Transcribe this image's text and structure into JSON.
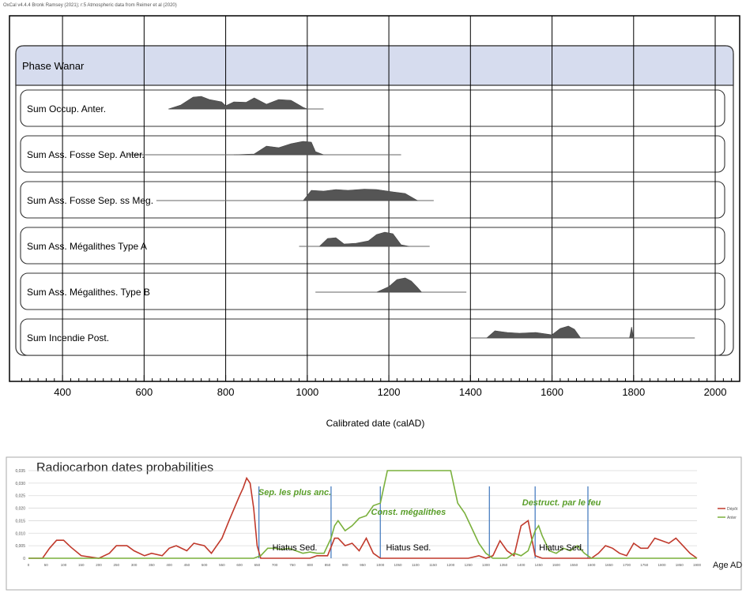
{
  "credit": "OxCal v4.4.4 Bronk Ramsey (2021); r:5 Atmospheric data from Reimer et al (2020)",
  "chart_data": [
    {
      "type": "area",
      "xlabel": "Calibrated date (calAD)",
      "xlim": [
        270,
        2060
      ],
      "xticks": [
        400,
        600,
        800,
        1000,
        1200,
        1400,
        1600,
        1800,
        2000
      ],
      "grid": true,
      "phase": "Phase Wanar",
      "series": [
        {
          "name": "Sum Occup. Anter.",
          "range": [
            660,
            1040
          ],
          "x": [
            660,
            690,
            720,
            740,
            760,
            790,
            800,
            820,
            850,
            870,
            900,
            930,
            960,
            990,
            1000
          ],
          "y": [
            0,
            0.25,
            0.75,
            0.8,
            0.6,
            0.45,
            0.2,
            0.45,
            0.42,
            0.7,
            0.3,
            0.6,
            0.55,
            0.1,
            0
          ]
        },
        {
          "name": "Sum Ass. Fosse Sep. Anter.",
          "range": [
            560,
            1230
          ],
          "x": [
            820,
            870,
            900,
            930,
            960,
            990,
            1010,
            1020,
            1040
          ],
          "y": [
            0,
            0.05,
            0.55,
            0.45,
            0.7,
            0.85,
            0.8,
            0.2,
            0
          ]
        },
        {
          "name": "Sum Ass. Fosse Sep. ss Meg.",
          "range": [
            630,
            1310
          ],
          "x": [
            990,
            1010,
            1040,
            1070,
            1100,
            1140,
            1170,
            1210,
            1240,
            1270
          ],
          "y": [
            0,
            0.65,
            0.6,
            0.7,
            0.65,
            0.72,
            0.7,
            0.55,
            0.45,
            0
          ]
        },
        {
          "name": "Sum Ass. Mégalithes Type A",
          "range": [
            980,
            1300
          ],
          "x": [
            1030,
            1050,
            1070,
            1090,
            1120,
            1150,
            1170,
            1190,
            1210,
            1230,
            1250
          ],
          "y": [
            0,
            0.5,
            0.55,
            0.15,
            0.2,
            0.35,
            0.75,
            0.9,
            0.8,
            0.1,
            0
          ]
        },
        {
          "name": "Sum Ass. Mégalithes. Type B",
          "range": [
            1020,
            1390
          ],
          "x": [
            1170,
            1200,
            1220,
            1240,
            1255,
            1270,
            1280
          ],
          "y": [
            0,
            0.35,
            0.8,
            0.9,
            0.7,
            0.3,
            0
          ]
        },
        {
          "name": "Sum Incendie Post.",
          "range": [
            1400,
            1950
          ],
          "x": [
            1440,
            1460,
            1490,
            1520,
            1560,
            1600,
            1620,
            1640,
            1655,
            1670,
            1790,
            1795,
            1800
          ],
          "y": [
            0,
            0.45,
            0.35,
            0.3,
            0.35,
            0.2,
            0.6,
            0.75,
            0.55,
            0,
            0,
            0.7,
            0
          ]
        }
      ]
    },
    {
      "type": "line",
      "title": "Radiocarbon dates probabilities",
      "xlabel": "Age AD",
      "yticks": [
        0,
        0.005,
        0.01,
        0.015,
        0.02,
        0.025,
        0.03,
        0.035
      ],
      "yticklabels": [
        "0",
        "0,005",
        "0,010",
        "0,015",
        "0,020",
        "0,025",
        "0,030",
        "0,035"
      ],
      "xlim": [
        0,
        1900
      ],
      "xticks": [
        0,
        50,
        100,
        150,
        200,
        250,
        300,
        350,
        400,
        450,
        500,
        550,
        600,
        650,
        700,
        750,
        800,
        850,
        900,
        950,
        1000,
        1050,
        1100,
        1150,
        1200,
        1250,
        1300,
        1350,
        1400,
        1450,
        1500,
        1550,
        1600,
        1650,
        1700,
        1750,
        1800,
        1850,
        1900
      ],
      "legend": [
        "Dépôt",
        "Anter"
      ],
      "legend_position": "right",
      "vlines": [
        655,
        860,
        1000,
        1310,
        1440,
        1590
      ],
      "annotations": [
        {
          "text": "Sep. les plus anc.",
          "color": "#5a9e2a",
          "x": 757
        },
        {
          "text": "Const. mégalithes",
          "color": "#5a9e2a",
          "x": 1080
        },
        {
          "text": "Destruct. par le feu",
          "color": "#5a9e2a",
          "x": 1515
        },
        {
          "text": "Hiatus Sed.",
          "color": "#000000",
          "x": 757
        },
        {
          "text": "Hiatus Sed.",
          "color": "#000000",
          "x": 1080
        },
        {
          "text": "Hiatus Sed.",
          "color": "#000000",
          "x": 1515
        }
      ],
      "series": [
        {
          "name": "Dépôt",
          "color": "#c0392b",
          "x": [
            0,
            40,
            60,
            80,
            100,
            120,
            150,
            200,
            230,
            250,
            280,
            300,
            330,
            350,
            380,
            400,
            420,
            450,
            470,
            500,
            520,
            550,
            570,
            600,
            610,
            620,
            630,
            640,
            650,
            660,
            680,
            700,
            750,
            800,
            820,
            850,
            870,
            880,
            900,
            920,
            940,
            960,
            980,
            1000,
            1050,
            1100,
            1150,
            1200,
            1250,
            1280,
            1300,
            1320,
            1340,
            1360,
            1380,
            1400,
            1420,
            1440,
            1460,
            1480,
            1500,
            1600,
            1620,
            1640,
            1660,
            1680,
            1700,
            1720,
            1740,
            1760,
            1780,
            1800,
            1820,
            1840,
            1860,
            1880,
            1900
          ],
          "y": [
            0,
            0,
            0.004,
            0.0072,
            0.0072,
            0.0045,
            0.001,
            0,
            0.002,
            0.005,
            0.005,
            0.003,
            0.001,
            0.002,
            0.001,
            0.004,
            0.005,
            0.003,
            0.006,
            0.005,
            0.002,
            0.008,
            0.015,
            0.025,
            0.028,
            0.032,
            0.03,
            0.02,
            0.005,
            0,
            0,
            0,
            0,
            0,
            0.001,
            0.001,
            0.008,
            0.008,
            0.005,
            0.006,
            0.003,
            0.008,
            0.002,
            0,
            0,
            0,
            0,
            0,
            0,
            0.001,
            0,
            0.001,
            0.007,
            0.003,
            0.001,
            0.013,
            0.015,
            0.001,
            0,
            0,
            0,
            0,
            0.002,
            0.005,
            0.004,
            0.002,
            0.001,
            0.006,
            0.004,
            0.004,
            0.008,
            0.007,
            0.006,
            0.008,
            0.005,
            0.002,
            0
          ]
        },
        {
          "name": "Anter",
          "color": "#7ab03c",
          "x": [
            0,
            600,
            640,
            660,
            680,
            700,
            720,
            740,
            760,
            780,
            800,
            820,
            840,
            860,
            870,
            880,
            900,
            920,
            940,
            960,
            980,
            1000,
            1020,
            1040,
            1060,
            1080,
            1100,
            1120,
            1140,
            1160,
            1180,
            1200,
            1220,
            1240,
            1260,
            1280,
            1300,
            1320,
            1340,
            1360,
            1380,
            1400,
            1420,
            1440,
            1450,
            1460,
            1480,
            1500,
            1520,
            1540,
            1560,
            1580,
            1600,
            1900
          ],
          "y": [
            0,
            0,
            0,
            0.001,
            0.004,
            0.004,
            0.0035,
            0.004,
            0.003,
            0.002,
            0.0025,
            0.002,
            0.002,
            0.008,
            0.013,
            0.015,
            0.011,
            0.013,
            0.016,
            0.017,
            0.021,
            0.022,
            0.048,
            0.045,
            0.042,
            0.044,
            0.047,
            0.045,
            0.044,
            0.048,
            0.038,
            0.036,
            0.022,
            0.018,
            0.012,
            0.006,
            0.002,
            0,
            0,
            0,
            0.002,
            0.001,
            0.003,
            0.011,
            0.013,
            0.009,
            0.003,
            0.002,
            0.004,
            0.003,
            0.005,
            0.002,
            0,
            0
          ]
        }
      ]
    }
  ]
}
